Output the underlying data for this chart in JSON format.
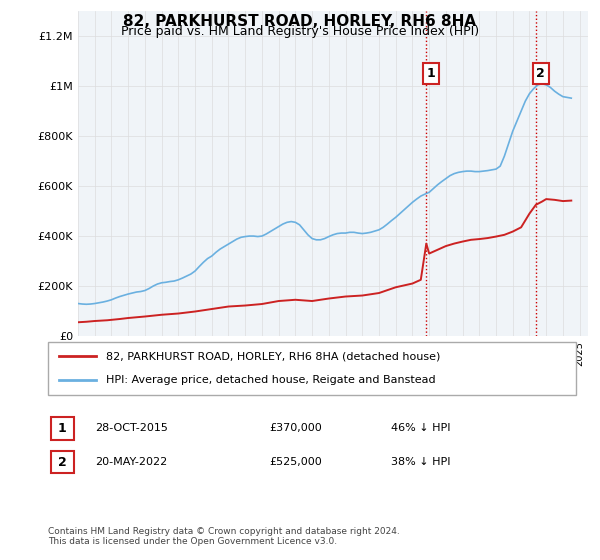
{
  "title": "82, PARKHURST ROAD, HORLEY, RH6 8HA",
  "subtitle": "Price paid vs. HM Land Registry's House Price Index (HPI)",
  "ylabel_ticks": [
    "£0",
    "£200K",
    "£400K",
    "£600K",
    "£800K",
    "£1M",
    "£1.2M"
  ],
  "ytick_values": [
    0,
    200000,
    400000,
    600000,
    800000,
    1000000,
    1200000
  ],
  "ylim": [
    0,
    1300000
  ],
  "xlim_start": 1995.0,
  "xlim_end": 2025.5,
  "hpi_color": "#6ab0e0",
  "price_color": "#cc2222",
  "vline_color": "#cc0000",
  "vline_style": ":",
  "background_color": "#f0f4f8",
  "plot_bg_color": "#f0f4f8",
  "marker1_year": 2015.83,
  "marker2_year": 2022.38,
  "marker1_price": 370000,
  "marker2_price": 525000,
  "annotation1_label": "1",
  "annotation2_label": "2",
  "legend_line1": "82, PARKHURST ROAD, HORLEY, RH6 8HA (detached house)",
  "legend_line2": "HPI: Average price, detached house, Reigate and Banstead",
  "table_row1": "1    28-OCT-2015         £370,000        46% ↓ HPI",
  "table_row2": "2    20-MAY-2022          £525,000        38% ↓ HPI",
  "footer": "Contains HM Land Registry data © Crown copyright and database right 2024.\nThis data is licensed under the Open Government Licence v3.0.",
  "hpi_data": {
    "years": [
      1995.0,
      1995.25,
      1995.5,
      1995.75,
      1996.0,
      1996.25,
      1996.5,
      1996.75,
      1997.0,
      1997.25,
      1997.5,
      1997.75,
      1998.0,
      1998.25,
      1998.5,
      1998.75,
      1999.0,
      1999.25,
      1999.5,
      1999.75,
      2000.0,
      2000.25,
      2000.5,
      2000.75,
      2001.0,
      2001.25,
      2001.5,
      2001.75,
      2002.0,
      2002.25,
      2002.5,
      2002.75,
      2003.0,
      2003.25,
      2003.5,
      2003.75,
      2004.0,
      2004.25,
      2004.5,
      2004.75,
      2005.0,
      2005.25,
      2005.5,
      2005.75,
      2006.0,
      2006.25,
      2006.5,
      2006.75,
      2007.0,
      2007.25,
      2007.5,
      2007.75,
      2008.0,
      2008.25,
      2008.5,
      2008.75,
      2009.0,
      2009.25,
      2009.5,
      2009.75,
      2010.0,
      2010.25,
      2010.5,
      2010.75,
      2011.0,
      2011.25,
      2011.5,
      2011.75,
      2012.0,
      2012.25,
      2012.5,
      2012.75,
      2013.0,
      2013.25,
      2013.5,
      2013.75,
      2014.0,
      2014.25,
      2014.5,
      2014.75,
      2015.0,
      2015.25,
      2015.5,
      2015.75,
      2016.0,
      2016.25,
      2016.5,
      2016.75,
      2017.0,
      2017.25,
      2017.5,
      2017.75,
      2018.0,
      2018.25,
      2018.5,
      2018.75,
      2019.0,
      2019.25,
      2019.5,
      2019.75,
      2020.0,
      2020.25,
      2020.5,
      2020.75,
      2021.0,
      2021.25,
      2021.5,
      2021.75,
      2022.0,
      2022.25,
      2022.5,
      2022.75,
      2023.0,
      2023.25,
      2023.5,
      2023.75,
      2024.0,
      2024.25,
      2024.5
    ],
    "values": [
      130000,
      128000,
      127000,
      128000,
      130000,
      133000,
      136000,
      140000,
      145000,
      152000,
      158000,
      163000,
      168000,
      172000,
      176000,
      178000,
      182000,
      190000,
      200000,
      208000,
      213000,
      215000,
      218000,
      220000,
      225000,
      232000,
      240000,
      248000,
      260000,
      278000,
      295000,
      310000,
      320000,
      335000,
      348000,
      358000,
      368000,
      378000,
      388000,
      395000,
      398000,
      400000,
      400000,
      398000,
      400000,
      408000,
      418000,
      428000,
      438000,
      448000,
      455000,
      458000,
      455000,
      445000,
      425000,
      405000,
      390000,
      385000,
      385000,
      390000,
      398000,
      405000,
      410000,
      412000,
      412000,
      415000,
      415000,
      412000,
      410000,
      412000,
      415000,
      420000,
      425000,
      435000,
      448000,
      462000,
      475000,
      490000,
      505000,
      520000,
      535000,
      548000,
      560000,
      568000,
      575000,
      590000,
      605000,
      618000,
      630000,
      642000,
      650000,
      655000,
      658000,
      660000,
      660000,
      658000,
      658000,
      660000,
      662000,
      665000,
      668000,
      680000,
      720000,
      770000,
      820000,
      860000,
      900000,
      940000,
      970000,
      990000,
      1005000,
      1010000,
      1005000,
      995000,
      980000,
      968000,
      958000,
      955000,
      952000
    ]
  },
  "price_data": {
    "years": [
      1995.0,
      1995.5,
      1996.0,
      1996.75,
      1997.5,
      1998.0,
      1999.0,
      2000.0,
      2001.0,
      2002.0,
      2003.0,
      2004.0,
      2005.0,
      2006.0,
      2007.0,
      2008.0,
      2009.0,
      2010.0,
      2011.0,
      2012.0,
      2013.0,
      2014.0,
      2015.0,
      2015.5,
      2015.83,
      2016.0,
      2016.5,
      2017.0,
      2017.5,
      2018.0,
      2018.5,
      2019.0,
      2019.5,
      2020.0,
      2020.5,
      2021.0,
      2021.5,
      2022.0,
      2022.38,
      2022.75,
      2023.0,
      2023.5,
      2024.0,
      2024.5
    ],
    "values": [
      55000,
      57000,
      60000,
      63000,
      68000,
      72000,
      78000,
      85000,
      90000,
      98000,
      108000,
      118000,
      122000,
      128000,
      140000,
      145000,
      140000,
      150000,
      158000,
      162000,
      172000,
      195000,
      210000,
      225000,
      370000,
      330000,
      345000,
      360000,
      370000,
      378000,
      385000,
      388000,
      392000,
      398000,
      405000,
      418000,
      435000,
      490000,
      525000,
      538000,
      548000,
      545000,
      540000,
      542000
    ]
  }
}
